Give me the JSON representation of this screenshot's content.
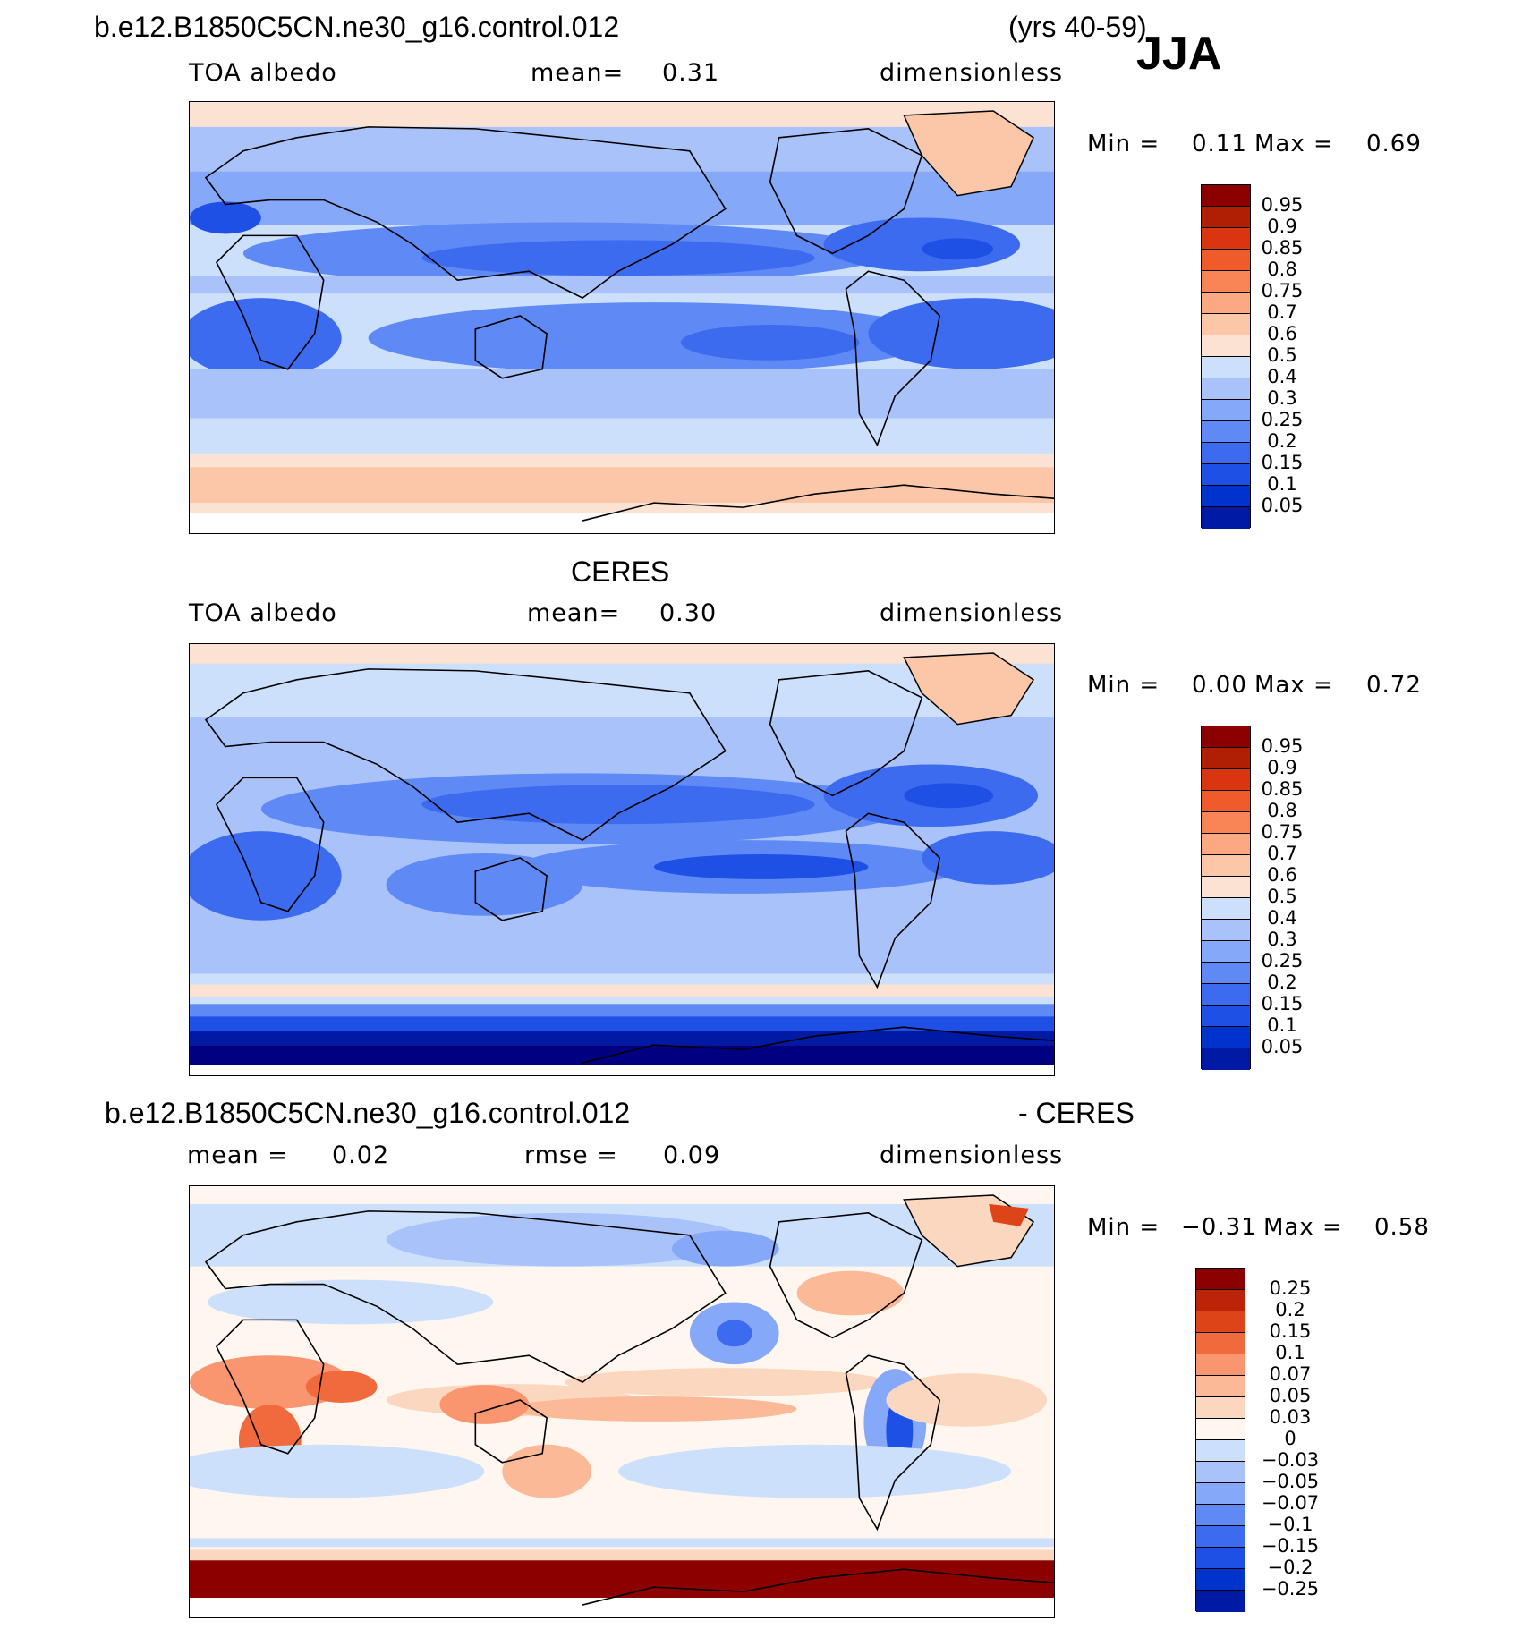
{
  "header": {
    "case_name": "b.e12.B1850C5CN.ne30_g16.control.012",
    "years": "(yrs 40-59)",
    "season": "JJA"
  },
  "colors": {
    "blue_scale": [
      "#000080",
      "#001aa5",
      "#0033cc",
      "#1f50e6",
      "#3d6bf0",
      "#5f8af5",
      "#86a8f8",
      "#a9c3fa",
      "#cde0fb",
      "#fbe2d2",
      "#fcc7a9",
      "#fca882",
      "#f98455",
      "#ef5b2a",
      "#d93510",
      "#b01e04",
      "#8c0000"
    ],
    "diff_scale": [
      "#000080",
      "#001aa5",
      "#0033cc",
      "#1f50e6",
      "#3d6bf0",
      "#5f8af5",
      "#86a8f8",
      "#a9c3fa",
      "#cde0fb",
      "#fff7ef",
      "#fbd7c0",
      "#fbb998",
      "#f99670",
      "#f06a3e",
      "#dd4519",
      "#bb2408",
      "#8c0000"
    ]
  },
  "panels": [
    {
      "id": "model",
      "title": "",
      "variable": "TOA albedo",
      "stat_label": "mean=",
      "stat_value": "0.31",
      "units": "dimensionless",
      "min_label": "Min =",
      "min_value": "0.11",
      "max_label": "Max =",
      "max_value": "0.69",
      "colorbar_labels": [
        "0.95",
        "0.9",
        "0.85",
        "0.8",
        "0.75",
        "0.7",
        "0.6",
        "0.5",
        "0.4",
        "0.3",
        "0.25",
        "0.2",
        "0.15",
        "0.1",
        "0.05"
      ]
    },
    {
      "id": "obs",
      "title": "CERES",
      "variable": "TOA albedo",
      "stat_label": "mean=",
      "stat_value": "0.30",
      "units": "dimensionless",
      "min_label": "Min =",
      "min_value": "0.00",
      "max_label": "Max =",
      "max_value": "0.72",
      "colorbar_labels": [
        "0.95",
        "0.9",
        "0.85",
        "0.8",
        "0.75",
        "0.7",
        "0.6",
        "0.5",
        "0.4",
        "0.3",
        "0.25",
        "0.2",
        "0.15",
        "0.1",
        "0.05"
      ]
    },
    {
      "id": "diff",
      "title_left": "b.e12.B1850C5CN.ne30_g16.control.012",
      "title_right": "- CERES",
      "mean_label": "mean =",
      "mean_value": "0.02",
      "rmse_label": "rmse =",
      "rmse_value": "0.09",
      "units": "dimensionless",
      "min_label": "Min =",
      "min_value": "−0.31",
      "max_label": "Max =",
      "max_value": "0.58",
      "colorbar_labels": [
        "0.25",
        "0.2",
        "0.15",
        "0.1",
        "0.07",
        "0.05",
        "0.03",
        "0",
        "−0.03",
        "−0.05",
        "−0.07",
        "−0.1",
        "−0.15",
        "−0.2",
        "−0.25"
      ]
    }
  ]
}
